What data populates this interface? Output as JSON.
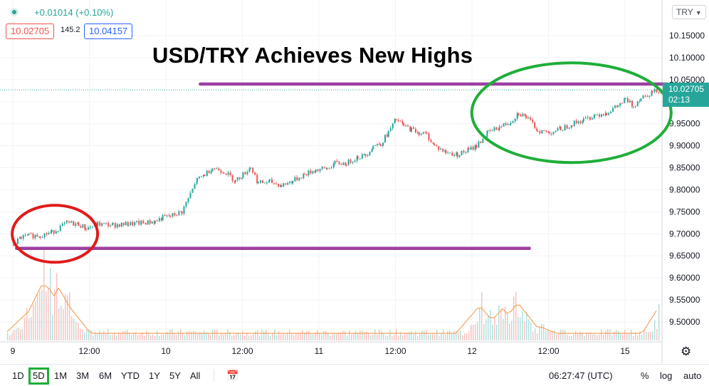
{
  "header": {
    "change_text": "+0.01014 (+0.10%)",
    "bid": "10.02705",
    "spread": "145.2",
    "ask": "10.04157"
  },
  "title": "USD/TRY Achieves New Highs",
  "axis_symbol": "TRY",
  "last_price": {
    "value": "10.02705",
    "countdown": "02:13"
  },
  "colors": {
    "up": "#26a69a",
    "down": "#ef5350",
    "purple_line": "#9c3fa3",
    "red_circle": "#e01b1b",
    "green_circle": "#1fae3a"
  },
  "chart_data": {
    "type": "line",
    "title": "USD/TRY Achieves New Highs",
    "y_axis": {
      "min": 9.45,
      "max": 10.2,
      "tick_labels": [
        "10.15000",
        "10.10000",
        "10.05000",
        "10.00000",
        "9.95000",
        "9.90000",
        "9.85000",
        "9.80000",
        "9.75000",
        "9.70000",
        "9.65000",
        "9.60000",
        "9.55000",
        "9.50000"
      ],
      "tick_values": [
        10.15,
        10.1,
        10.05,
        10.0,
        9.95,
        9.9,
        9.85,
        9.8,
        9.75,
        9.7,
        9.65,
        9.6,
        9.55,
        9.5
      ]
    },
    "x_axis": {
      "tick_labels": [
        "9",
        "12:00",
        "10",
        "12:00",
        "11",
        "12:00",
        "12",
        "12:00",
        "15"
      ],
      "tick_positions": [
        0,
        1,
        2,
        3,
        4,
        5,
        6,
        7,
        8
      ]
    },
    "series": [
      {
        "x": [
          0,
          0.1,
          0.2,
          0.35,
          0.5,
          0.7,
          0.85,
          0.95,
          1.1,
          1.3,
          1.5,
          1.7,
          1.85,
          1.95,
          2.05,
          2.2,
          2.4,
          2.5,
          2.6,
          2.75,
          2.9,
          3.0,
          3.1,
          3.2,
          3.35,
          3.5,
          3.65,
          3.8,
          3.95,
          4.1,
          4.2,
          4.35,
          4.5,
          4.6,
          4.7,
          4.8,
          4.9,
          5.0,
          5.1,
          5.2,
          5.3,
          5.4,
          5.5,
          5.65,
          5.8,
          5.95,
          6.05,
          6.2,
          6.35,
          6.5,
          6.6,
          6.7,
          6.85,
          7.0,
          7.15,
          7.3,
          7.45,
          7.6,
          7.75,
          7.9,
          8.0,
          8.1,
          8.2,
          8.35,
          8.5,
          8.6,
          8.7
        ],
        "y": [
          9.675,
          9.692,
          9.695,
          9.697,
          9.703,
          9.725,
          9.722,
          9.712,
          9.722,
          9.72,
          9.722,
          9.725,
          9.728,
          9.737,
          9.74,
          9.75,
          9.822,
          9.835,
          9.85,
          9.842,
          9.82,
          9.835,
          9.852,
          9.815,
          9.818,
          9.81,
          9.82,
          9.835,
          9.845,
          9.848,
          9.86,
          9.86,
          9.875,
          9.878,
          9.9,
          9.905,
          9.93,
          9.96,
          9.945,
          9.937,
          9.93,
          9.925,
          9.9,
          9.885,
          9.88,
          9.89,
          9.9,
          9.93,
          9.942,
          9.955,
          9.975,
          9.965,
          9.935,
          9.93,
          9.938,
          9.95,
          9.958,
          9.97,
          9.975,
          9.99,
          10.005,
          9.99,
          10.01,
          10.022,
          10.03,
          10.03,
          10.027
        ]
      }
    ],
    "volume_profile": [
      {
        "x": 0.4,
        "height": 0.95
      },
      {
        "x": 0.45,
        "height": 0.9
      },
      {
        "x": 0.6,
        "height": 0.85
      },
      {
        "x": 0.7,
        "height": 0.6
      },
      {
        "x": 0.2,
        "height": 0.45
      },
      {
        "x": 0.3,
        "height": 0.5
      },
      {
        "x": 6.1,
        "height": 0.55
      },
      {
        "x": 6.25,
        "height": 0.35
      },
      {
        "x": 6.4,
        "height": 0.5
      },
      {
        "x": 6.6,
        "height": 0.6
      },
      {
        "x": 6.9,
        "height": 0.2
      },
      {
        "x": 8.55,
        "height": 0.75
      }
    ],
    "annotations": [
      {
        "type": "hline",
        "x_from": 2.45,
        "x_to": 8.55,
        "y": 10.04
      },
      {
        "type": "hline",
        "x_from": 0.05,
        "x_to": 6.75,
        "y": 9.667
      },
      {
        "type": "ellipse",
        "color": "red",
        "x_center": 0.55,
        "y_center": 9.7
      },
      {
        "type": "ellipse",
        "color": "green",
        "x_center": 7.3,
        "y_center": 9.975
      }
    ]
  },
  "toolbar": {
    "timeframes": [
      "1D",
      "5D",
      "1M",
      "3M",
      "6M",
      "YTD",
      "1Y",
      "5Y",
      "All"
    ],
    "active_timeframe": "5D",
    "clock": "06:27:47 (UTC)",
    "percent": "%",
    "log": "log",
    "auto": "auto"
  }
}
